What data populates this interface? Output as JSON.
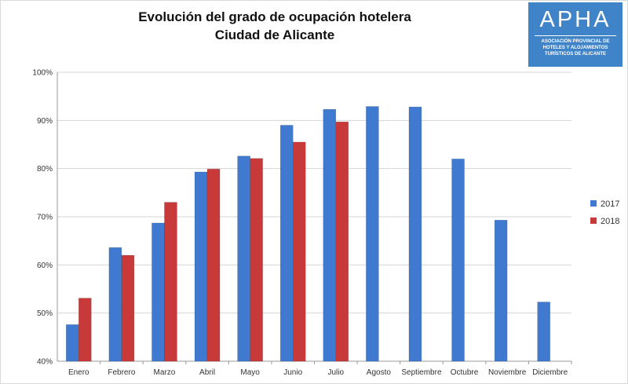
{
  "title_line1": "Evolución del grado de ocupación hotelera",
  "title_line2": "Ciudad de Alicante",
  "logo": {
    "text": "APHA",
    "subtitle": "ASOCIACIÓN PROVINCIAL DE HOTELES Y ALOJAMIENTOS TURÍSTICOS DE ALICANTE",
    "color": "#3f83c8"
  },
  "chart_data": {
    "type": "bar",
    "categories": [
      "Enero",
      "Febrero",
      "Marzo",
      "Abril",
      "Mayo",
      "Junio",
      "Julio",
      "Agosto",
      "Septiembre",
      "Octubre",
      "Noviembre",
      "Diciembre"
    ],
    "series": [
      {
        "name": "2017",
        "color": "#3f7ad0",
        "values": [
          47.6,
          63.6,
          68.7,
          79.3,
          82.6,
          89.0,
          92.3,
          92.9,
          92.8,
          82.0,
          69.3,
          52.3
        ]
      },
      {
        "name": "2018",
        "color": "#c83a3a",
        "values": [
          53.1,
          62.0,
          73.0,
          79.9,
          82.1,
          85.5,
          89.7,
          null,
          null,
          null,
          null,
          null
        ]
      }
    ],
    "ylim": [
      40,
      100
    ],
    "yticks": [
      "40%",
      "50%",
      "60%",
      "70%",
      "80%",
      "90%",
      "100%"
    ],
    "grid": true,
    "legend_position": "right"
  }
}
